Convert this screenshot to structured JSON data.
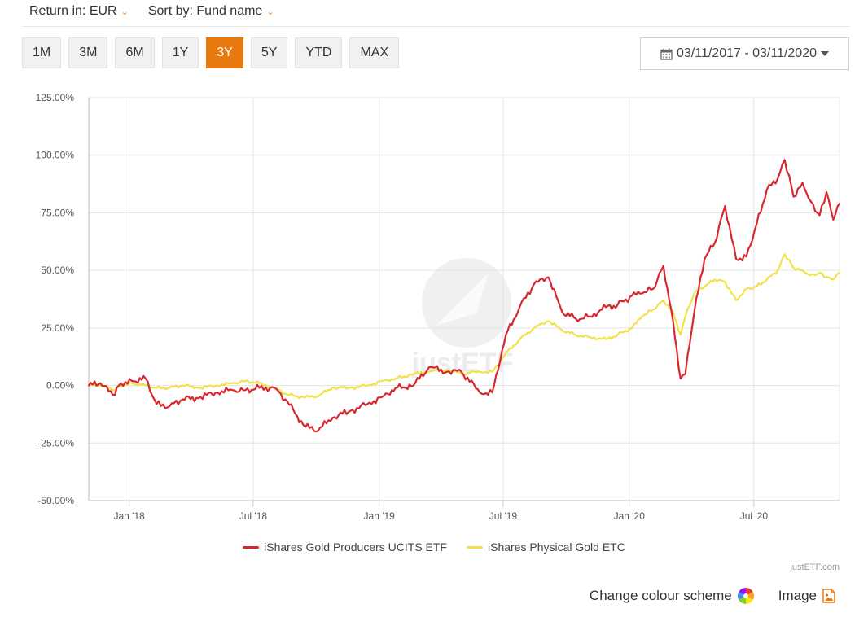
{
  "controls": {
    "return_label": "Return in: EUR",
    "sort_label": "Sort by: Fund name",
    "ranges": [
      "1M",
      "3M",
      "6M",
      "1Y",
      "3Y",
      "5Y",
      "YTD",
      "MAX"
    ],
    "active_range": "3Y",
    "date_range": "03/11/2017 - 03/11/2020"
  },
  "footer": {
    "credit": "justETF.com",
    "change_colour": "Change colour scheme",
    "image": "Image"
  },
  "watermark": "justETF",
  "colors": {
    "accent": "#e8790f",
    "series_red": "#d7282f",
    "series_yellow": "#f2e24a"
  },
  "chart_data": {
    "type": "line",
    "x_range": [
      "2017-11-03",
      "2020-11-03"
    ],
    "ylim": [
      -50,
      125
    ],
    "y_ticks": [
      -50,
      -25,
      0,
      25,
      50,
      75,
      100,
      125
    ],
    "y_tick_labels": [
      "-50.00%",
      "-25.00%",
      "0.00%",
      "25.00%",
      "50.00%",
      "75.00%",
      "100.00%",
      "125.00%"
    ],
    "x_ticks": [
      "2018-01-01",
      "2018-07-01",
      "2019-01-01",
      "2019-07-01",
      "2020-01-01",
      "2020-07-01"
    ],
    "x_tick_labels": [
      "Jan '18",
      "Jul '18",
      "Jan '19",
      "Jul '19",
      "Jan '20",
      "Jul '20"
    ],
    "grid": true,
    "legend_position": "bottom",
    "series": [
      {
        "name": "iShares Gold Producers UCITS ETF",
        "color": "#d7282f",
        "x": [
          "2017-11-03",
          "2017-11-20",
          "2017-12-08",
          "2017-12-20",
          "2018-01-05",
          "2018-01-25",
          "2018-02-10",
          "2018-03-01",
          "2018-03-20",
          "2018-04-15",
          "2018-05-10",
          "2018-06-01",
          "2018-06-20",
          "2018-07-10",
          "2018-08-01",
          "2018-08-20",
          "2018-09-12",
          "2018-10-01",
          "2018-10-25",
          "2018-11-20",
          "2018-12-15",
          "2019-01-05",
          "2019-01-25",
          "2019-02-20",
          "2019-03-15",
          "2019-04-10",
          "2019-05-01",
          "2019-05-28",
          "2019-06-15",
          "2019-07-05",
          "2019-07-25",
          "2019-08-15",
          "2019-09-05",
          "2019-09-25",
          "2019-10-15",
          "2019-11-05",
          "2019-11-28",
          "2019-12-15",
          "2020-01-05",
          "2020-01-20",
          "2020-02-05",
          "2020-02-20",
          "2020-03-05",
          "2020-03-16",
          "2020-03-23",
          "2020-04-05",
          "2020-04-20",
          "2020-05-05",
          "2020-05-20",
          "2020-06-05",
          "2020-06-20",
          "2020-07-05",
          "2020-07-20",
          "2020-08-05",
          "2020-08-15",
          "2020-08-28",
          "2020-09-10",
          "2020-09-22",
          "2020-10-05",
          "2020-10-15",
          "2020-10-25",
          "2020-11-03"
        ],
        "values": [
          0,
          1,
          -4,
          1,
          2,
          3,
          -8,
          -9,
          -6,
          -5,
          -3,
          -2,
          -2,
          -1,
          -1,
          -7,
          -17,
          -20,
          -14,
          -11,
          -8,
          -5,
          -1,
          0,
          8,
          6,
          6,
          -3,
          -3,
          22,
          34,
          44,
          47,
          32,
          29,
          30,
          34,
          35,
          39,
          40,
          42,
          52,
          28,
          3,
          5,
          32,
          55,
          62,
          78,
          55,
          56,
          70,
          85,
          90,
          98,
          82,
          88,
          80,
          74,
          84,
          72,
          79
        ]
      },
      {
        "name": "iShares Physical Gold ETC",
        "color": "#f2e24a",
        "x": [
          "2017-11-03",
          "2017-11-20",
          "2017-12-08",
          "2017-12-20",
          "2018-01-05",
          "2018-01-25",
          "2018-02-10",
          "2018-03-01",
          "2018-03-20",
          "2018-04-15",
          "2018-05-10",
          "2018-06-01",
          "2018-06-20",
          "2018-07-10",
          "2018-08-01",
          "2018-08-20",
          "2018-09-12",
          "2018-10-01",
          "2018-10-25",
          "2018-11-20",
          "2018-12-15",
          "2019-01-05",
          "2019-01-25",
          "2019-02-20",
          "2019-03-15",
          "2019-04-10",
          "2019-05-01",
          "2019-05-28",
          "2019-06-15",
          "2019-07-05",
          "2019-07-25",
          "2019-08-15",
          "2019-09-05",
          "2019-09-25",
          "2019-10-15",
          "2019-11-05",
          "2019-11-28",
          "2019-12-15",
          "2020-01-05",
          "2020-01-20",
          "2020-02-05",
          "2020-02-20",
          "2020-03-05",
          "2020-03-16",
          "2020-03-23",
          "2020-04-05",
          "2020-04-20",
          "2020-05-05",
          "2020-05-20",
          "2020-06-05",
          "2020-06-20",
          "2020-07-05",
          "2020-07-20",
          "2020-08-05",
          "2020-08-15",
          "2020-08-28",
          "2020-09-10",
          "2020-09-22",
          "2020-10-05",
          "2020-10-15",
          "2020-10-25",
          "2020-11-03"
        ],
        "values": [
          0,
          0,
          -2,
          0,
          1,
          0,
          -1,
          -1,
          0,
          -1,
          0,
          1,
          2,
          1,
          -1,
          -4,
          -5,
          -5,
          -1,
          -1,
          0,
          2,
          3,
          5,
          6,
          7,
          5,
          6,
          6,
          14,
          20,
          25,
          28,
          24,
          22,
          21,
          20,
          22,
          25,
          30,
          33,
          37,
          32,
          22,
          30,
          40,
          43,
          46,
          45,
          37,
          42,
          43,
          46,
          50,
          57,
          51,
          50,
          48,
          49,
          47,
          46,
          49
        ]
      }
    ]
  }
}
